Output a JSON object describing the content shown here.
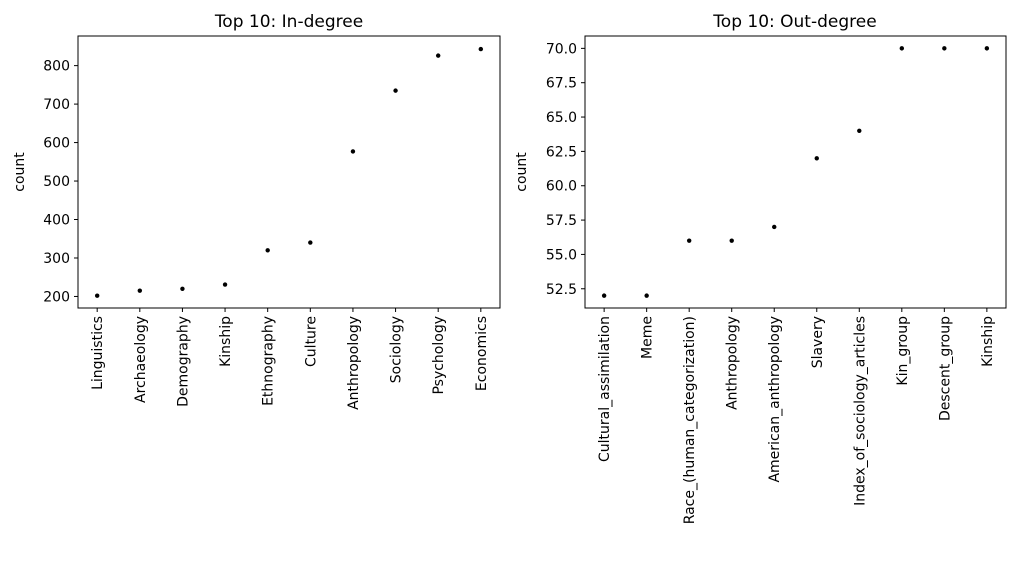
{
  "chart_data": [
    {
      "type": "scatter",
      "title": "Top 10: In-degree",
      "xlabel": "",
      "ylabel": "count",
      "categories": [
        "Linguistics",
        "Archaeology",
        "Demography",
        "Kinship",
        "Ethnography",
        "Culture",
        "Anthropology",
        "Sociology",
        "Psychology",
        "Economics"
      ],
      "values": [
        202,
        215,
        220,
        231,
        320,
        340,
        577,
        735,
        826,
        843
      ],
      "ylim": [
        170,
        877
      ],
      "yticks": [
        200,
        300,
        400,
        500,
        600,
        700,
        800
      ],
      "ytick_labels": [
        "200",
        "300",
        "400",
        "500",
        "600",
        "700",
        "800"
      ],
      "grid": false,
      "marker_color": "#000000"
    },
    {
      "type": "scatter",
      "title": "Top 10: Out-degree",
      "xlabel": "",
      "ylabel": "count",
      "categories": [
        "Cultural_assimilation",
        "Meme",
        "Race_(human_categorization)",
        "Anthropology",
        "American_anthropology",
        "Slavery",
        "Index_of_sociology_articles",
        "Kin_group",
        "Descent_group",
        "Kinship"
      ],
      "values": [
        52,
        52,
        56,
        56,
        57,
        62,
        64,
        70,
        70,
        70
      ],
      "ylim": [
        51.1,
        70.9
      ],
      "yticks": [
        52.5,
        55.0,
        57.5,
        60.0,
        62.5,
        65.0,
        67.5,
        70.0
      ],
      "ytick_labels": [
        "52.5",
        "55.0",
        "57.5",
        "60.0",
        "62.5",
        "65.0",
        "67.5",
        "70.0"
      ],
      "grid": false,
      "marker_color": "#000000"
    }
  ]
}
